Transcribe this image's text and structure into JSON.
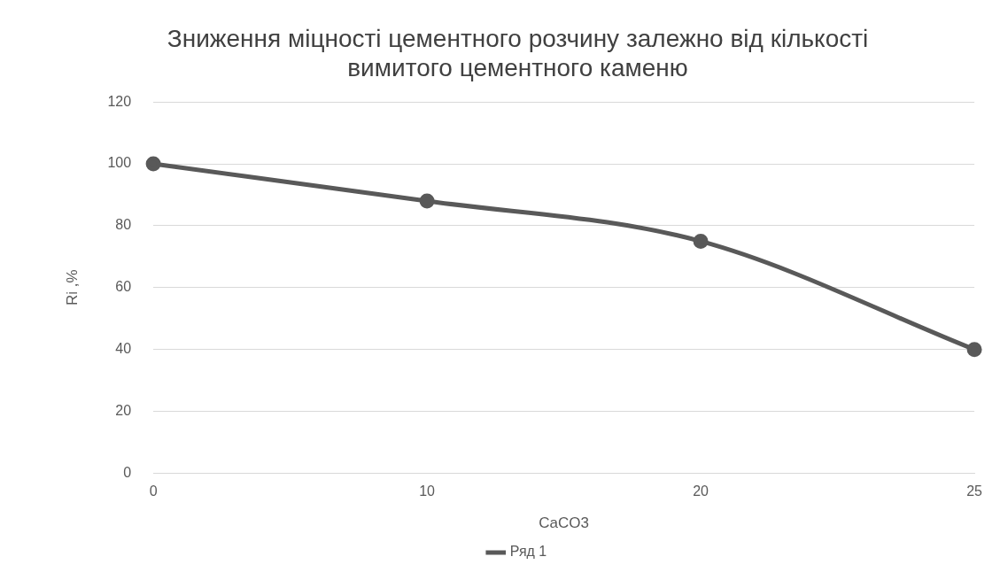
{
  "chart_data": {
    "type": "line",
    "title": "Зниження міцності цементного розчину залежно від кількості вимитого цементного каменю",
    "xlabel": "CaCO3",
    "ylabel": "Ri ,%",
    "categories": [
      "0",
      "10",
      "20",
      "25"
    ],
    "series": [
      {
        "name": "Ряд 1",
        "color": "#595959",
        "values": [
          100,
          88,
          75,
          40
        ]
      }
    ],
    "ylim": [
      0,
      120
    ],
    "yticks": [
      0,
      20,
      40,
      60,
      80,
      100,
      120
    ],
    "grid": "y",
    "legend": "bottom",
    "marker": "circle",
    "line_style": "solid"
  }
}
